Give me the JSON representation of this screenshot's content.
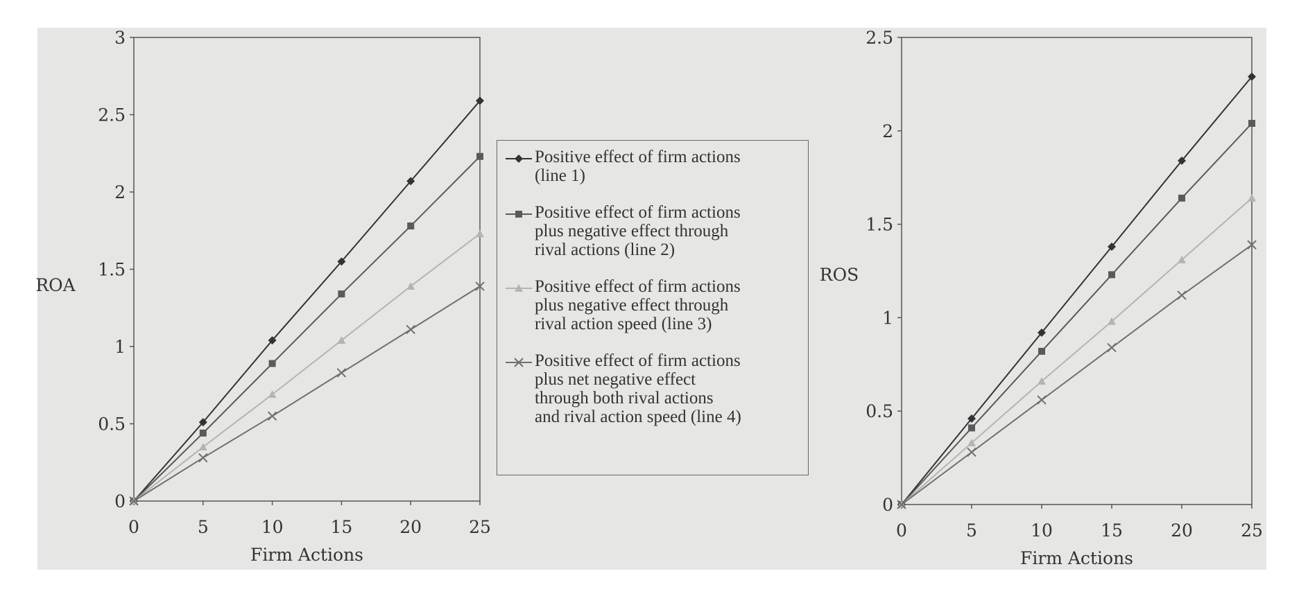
{
  "chart_data": [
    {
      "type": "line",
      "title": "",
      "xlabel": "Firm Actions",
      "ylabel": "ROA",
      "x": [
        0,
        5,
        10,
        15,
        20,
        25
      ],
      "xlim": [
        0,
        25
      ],
      "ylim": [
        0,
        3
      ],
      "xticks": [
        "0",
        "5",
        "10",
        "15",
        "20",
        "25"
      ],
      "yticks": [
        "0",
        "0.5",
        "1",
        "1.5",
        "2",
        "2.5",
        "3"
      ],
      "grid": false,
      "series": [
        {
          "name": "Positive effect of firm actions (line 1)",
          "values": [
            0,
            0.51,
            1.04,
            1.55,
            2.07,
            2.59
          ]
        },
        {
          "name": "Positive effect of firm actions plus negative effect through rival actions (line 2)",
          "values": [
            0,
            0.44,
            0.89,
            1.34,
            1.78,
            2.23
          ]
        },
        {
          "name": "Positive effect of firm actions plus negative effect through rival action speed (line 3)",
          "values": [
            0,
            0.35,
            0.69,
            1.04,
            1.39,
            1.73
          ]
        },
        {
          "name": "Positive effect of firm actions plus net negative effect through both rival actions and rival action speed (line 4)",
          "values": [
            0,
            0.28,
            0.55,
            0.83,
            1.11,
            1.39
          ]
        }
      ]
    },
    {
      "type": "line",
      "title": "",
      "xlabel": "Firm Actions",
      "ylabel": "ROS",
      "x": [
        0,
        5,
        10,
        15,
        20,
        25
      ],
      "xlim": [
        0,
        25
      ],
      "ylim": [
        0,
        2.5
      ],
      "xticks": [
        "0",
        "5",
        "10",
        "15",
        "20",
        "25"
      ],
      "yticks": [
        "0",
        "0.5",
        "1",
        "1.5",
        "2",
        "2.5"
      ],
      "grid": false,
      "series": [
        {
          "name": "line 1",
          "values": [
            0,
            0.46,
            0.92,
            1.38,
            1.84,
            2.29
          ]
        },
        {
          "name": "line 2",
          "values": [
            0,
            0.41,
            0.82,
            1.23,
            1.64,
            2.04
          ]
        },
        {
          "name": "line 3",
          "values": [
            0,
            0.33,
            0.66,
            0.98,
            1.31,
            1.64
          ]
        },
        {
          "name": "line 4",
          "values": [
            0,
            0.28,
            0.56,
            0.84,
            1.12,
            1.39
          ]
        }
      ]
    }
  ],
  "legend": {
    "placement": "between-charts",
    "items": [
      {
        "lines": [
          "Positive effect of firm actions",
          "(line 1)"
        ],
        "marker": "diamond",
        "color": "#333333"
      },
      {
        "lines": [
          "Positive effect of firm actions",
          "plus negative effect through",
          "rival actions (line 2)"
        ],
        "marker": "square",
        "color": "#5a5a5a"
      },
      {
        "lines": [
          "Positive effect of firm actions",
          "plus negative effect through",
          "rival action speed (line 3)"
        ],
        "marker": "triangle",
        "color": "#b4b4b4"
      },
      {
        "lines": [
          "Positive effect of firm actions",
          "plus net negative effect",
          "through both rival actions",
          "and rival action speed (line 4)"
        ],
        "marker": "x",
        "color": "#707070"
      }
    ]
  }
}
